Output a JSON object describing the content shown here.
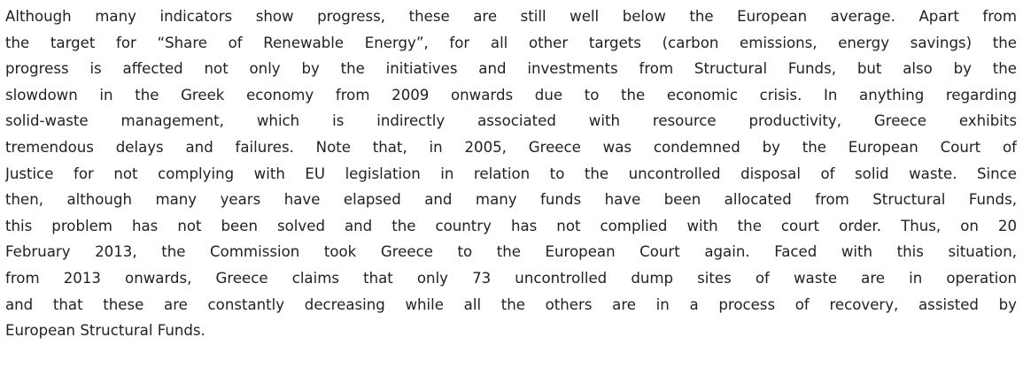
{
  "paragraph": {
    "lines": [
      "Although many indicators show progress, these are still well below the European average. Apart from",
      "the target for “Share of Renewable Energy”, for all other targets (carbon emissions, energy savings) the",
      "progress is affected not only by the initiatives and investments from Structural Funds, but also by the",
      "slowdown in the Greek economy from 2009 onwards due to the economic crisis. In anything regarding",
      "solid-waste management, which is indirectly associated with resource productivity, Greece exhibits",
      "tremendous delays and failures. Note that, in 2005, Greece was condemned by the European Court of",
      "Justice for not complying with EU legislation in relation to the uncontrolled disposal of solid waste. Since",
      "then, although many years have elapsed and many funds have been allocated from Structural Funds,",
      "this problem has not been solved and the country has not complied with the court order. Thus, on 20",
      "February 2013, the Commission took Greece to the European Court again. Faced with this situation,",
      "from 2013 onwards, Greece claims that only 73 uncontrolled dump sites of waste are in operation",
      "and that these are constantly decreasing while all the others are in a process of recovery, assisted by",
      "European Structural Funds."
    ]
  }
}
